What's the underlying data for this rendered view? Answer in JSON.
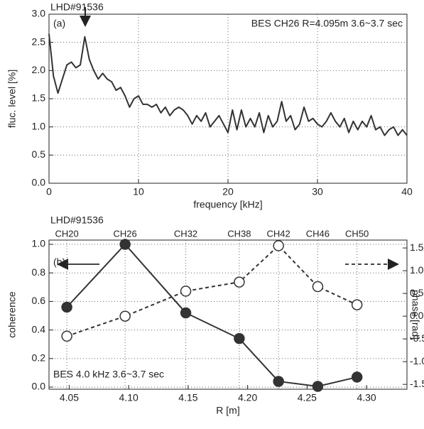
{
  "chart_data": [
    {
      "type": "line",
      "title": "LHD#91536",
      "annotations": [
        "(a)",
        "BES CH26 R=4.095m 3.6~3.7 sec"
      ],
      "xlabel": "frequency [kHz]",
      "ylabel": "fluc. level [%]",
      "color": "#333333",
      "grid": true,
      "xlim": [
        0,
        40
      ],
      "xticks": [
        0,
        10,
        20,
        30,
        40
      ],
      "ylim": [
        0,
        3.0
      ],
      "yticks": [
        {
          "value": 0,
          "label": "0.0"
        },
        0.5,
        {
          "value": 1,
          "label": "1.0"
        },
        1.5,
        {
          "value": 2,
          "label": "2.0"
        },
        2.5,
        {
          "value": 3,
          "label": "3.0"
        }
      ],
      "x": [
        0,
        0.5,
        1,
        1.5,
        2,
        2.5,
        3,
        3.5,
        4,
        4.5,
        5,
        5.5,
        6,
        6.5,
        7,
        7.5,
        8,
        8.5,
        9,
        9.5,
        10,
        10.5,
        11,
        11.5,
        12,
        12.5,
        13,
        13.5,
        14,
        14.5,
        15,
        15.5,
        16,
        16.5,
        17,
        17.5,
        18,
        18.5,
        19,
        19.5,
        20,
        20.5,
        21,
        21.5,
        22,
        22.5,
        23,
        23.5,
        24,
        24.5,
        25,
        25.5,
        26,
        26.5,
        27,
        27.5,
        28,
        28.5,
        29,
        29.5,
        30,
        30.5,
        31,
        31.5,
        32,
        32.5,
        33,
        33.5,
        34,
        34.5,
        35,
        35.5,
        36,
        36.5,
        37,
        37.5,
        38,
        38.5,
        39,
        39.5,
        40
      ],
      "values": [
        2.65,
        1.9,
        1.6,
        1.85,
        2.1,
        2.15,
        2.05,
        2.1,
        2.6,
        2.2,
        2.0,
        1.85,
        1.95,
        1.85,
        1.8,
        1.65,
        1.7,
        1.55,
        1.35,
        1.5,
        1.55,
        1.4,
        1.4,
        1.35,
        1.4,
        1.25,
        1.35,
        1.2,
        1.3,
        1.35,
        1.3,
        1.2,
        1.05,
        1.2,
        1.1,
        1.25,
        1.0,
        1.1,
        1.2,
        1.05,
        0.9,
        1.3,
        0.95,
        1.3,
        1.0,
        1.15,
        1.0,
        1.25,
        0.9,
        1.2,
        1.0,
        1.1,
        1.45,
        1.1,
        1.2,
        0.95,
        1.05,
        1.35,
        1.1,
        1.15,
        1.05,
        1.0,
        1.1,
        1.25,
        1.1,
        1.0,
        1.15,
        0.9,
        1.1,
        0.95,
        1.1,
        1.0,
        1.2,
        0.95,
        1.0,
        0.85,
        0.95,
        1.0,
        0.85,
        0.95,
        0.85
      ]
    },
    {
      "type": "line",
      "title": "LHD#91536",
      "annotations": [
        "(b)",
        "BES 4.0 kHz 3.6~3.7 sec"
      ],
      "xlabel": "R [m]",
      "ylabel": "coherence",
      "y2label": "phase [rad]",
      "grid": true,
      "xlim": [
        4.033,
        4.334
      ],
      "xticks": [
        4.05,
        {
          "value": 4.1,
          "label": "4.10"
        },
        4.15,
        {
          "value": 4.2,
          "label": "4.20"
        },
        4.25,
        {
          "value": 4.3,
          "label": "4.30"
        }
      ],
      "x2ticks": [
        {
          "value": 4.048,
          "label": "CH20"
        },
        {
          "value": 4.097,
          "label": "CH26"
        },
        {
          "value": 4.148,
          "label": "CH32"
        },
        {
          "value": 4.193,
          "label": "CH38"
        },
        {
          "value": 4.226,
          "label": "CH42"
        },
        {
          "value": 4.259,
          "label": "CH46"
        },
        {
          "value": 4.292,
          "label": "CH50"
        }
      ],
      "ylim": [
        0,
        1.0
      ],
      "yticks": [
        {
          "value": 0,
          "label": "0.0"
        },
        0.2,
        0.4,
        0.6,
        0.8,
        {
          "value": 1,
          "label": "1.0"
        }
      ],
      "y2lim": [
        -1.56,
        1.58
      ],
      "y2ticks": [
        -1.5,
        {
          "value": -1,
          "label": "-1.0"
        },
        -0.5,
        {
          "value": 0,
          "label": "0.0"
        },
        0.5,
        {
          "value": 1,
          "label": "1.0"
        },
        1.5
      ],
      "x": [
        4.048,
        4.097,
        4.148,
        4.193,
        4.226,
        4.259,
        4.292
      ],
      "series": [
        {
          "color": "#333333",
          "marker": "filled",
          "dashed": false,
          "axis": "y",
          "values": [
            0.56,
            1.0,
            0.52,
            0.34,
            0.04,
            0.005,
            0.07
          ]
        },
        {
          "color": "#333333",
          "marker": "open",
          "dashed": true,
          "axis": "y2",
          "values": [
            -0.44,
            0.0,
            0.55,
            0.75,
            1.55,
            0.65,
            0.25
          ]
        }
      ]
    }
  ]
}
